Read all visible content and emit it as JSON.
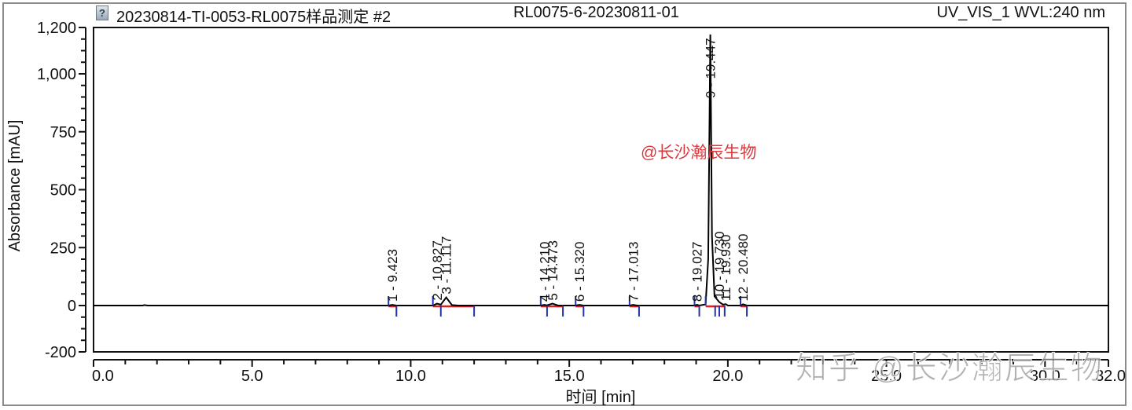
{
  "header": {
    "icon": "question-file-icon",
    "icon_glyph": "?",
    "sample_name": "20230814-TI-0053-RL0075样品测定 #2",
    "injection": "RL0075-6-20230811-01",
    "channel": "UV_VIS_1 WVL:240 nm"
  },
  "axes": {
    "ylabel": "Absorbance [mAU]",
    "xlabel": "时间 [min]",
    "y_ticks": [
      "1,200",
      "1,000",
      "750",
      "500",
      "250",
      "0",
      "-200"
    ],
    "x_ticks": [
      "0.0",
      "5.0",
      "10.0",
      "15.0",
      "20.0",
      "25.0",
      "30.0",
      "32.0"
    ]
  },
  "watermarks": {
    "red": "@长沙瀚辰生物",
    "gray": "知乎 @长沙瀚辰生物"
  },
  "peak_labels": [
    {
      "id": "1",
      "text": "1 - 9.423"
    },
    {
      "id": "2",
      "text": "2 - 10.827"
    },
    {
      "id": "3",
      "text": "3 - 11.117"
    },
    {
      "id": "4",
      "text": "4 - 14.210"
    },
    {
      "id": "5",
      "text": "5 - 14.473"
    },
    {
      "id": "6",
      "text": "6 - 15.320"
    },
    {
      "id": "7",
      "text": "7 - 17.013"
    },
    {
      "id": "8",
      "text": "8 - 19.027"
    },
    {
      "id": "9",
      "text": "9 - 19.447"
    },
    {
      "id": "10",
      "text": "10 - 19.730"
    },
    {
      "id": "11",
      "text": "11 - 19.930"
    },
    {
      "id": "12",
      "text": "12 - 20.480"
    }
  ],
  "chart_data": {
    "type": "line",
    "title": "20230814-TI-0053-RL0075样品测定 #2 — RL0075-6-20230811-01 — UV_VIS_1 WVL:240 nm",
    "xlabel": "时间 [min]",
    "ylabel": "Absorbance [mAU]",
    "xlim": [
      0.0,
      32.0
    ],
    "ylim": [
      -200,
      1200
    ],
    "x_ticks": [
      0,
      5,
      10,
      15,
      20,
      25,
      30,
      32
    ],
    "y_ticks": [
      -200,
      0,
      250,
      500,
      750,
      1000,
      1200
    ],
    "grid": false,
    "legend": null,
    "series": [
      {
        "name": "UV_VIS_1",
        "color": "#000000",
        "peaks": [
          {
            "peak": 1,
            "rt_min": 9.423,
            "height_mAU": 3
          },
          {
            "peak": 2,
            "rt_min": 10.827,
            "height_mAU": 8
          },
          {
            "peak": 3,
            "rt_min": 11.117,
            "height_mAU": 35
          },
          {
            "peak": 4,
            "rt_min": 14.21,
            "height_mAU": 3
          },
          {
            "peak": 5,
            "rt_min": 14.473,
            "height_mAU": 8
          },
          {
            "peak": 6,
            "rt_min": 15.32,
            "height_mAU": 3
          },
          {
            "peak": 7,
            "rt_min": 17.013,
            "height_mAU": 3
          },
          {
            "peak": 8,
            "rt_min": 19.027,
            "height_mAU": 3
          },
          {
            "peak": 9,
            "rt_min": 19.447,
            "height_mAU": 1170
          },
          {
            "peak": 10,
            "rt_min": 19.73,
            "height_mAU": 15
          },
          {
            "peak": 11,
            "rt_min": 19.93,
            "height_mAU": 6
          },
          {
            "peak": 12,
            "rt_min": 20.48,
            "height_mAU": 5
          }
        ],
        "baseline_mAU": 0,
        "points": [
          [
            0.0,
            0
          ],
          [
            1.55,
            0
          ],
          [
            1.6,
            2
          ],
          [
            1.7,
            0
          ],
          [
            9.3,
            0
          ],
          [
            9.42,
            3
          ],
          [
            9.55,
            0
          ],
          [
            10.7,
            0
          ],
          [
            10.83,
            8
          ],
          [
            10.95,
            4
          ],
          [
            11.12,
            35
          ],
          [
            11.3,
            2
          ],
          [
            11.5,
            0
          ],
          [
            14.1,
            0
          ],
          [
            14.21,
            3
          ],
          [
            14.3,
            1
          ],
          [
            14.47,
            8
          ],
          [
            14.65,
            0
          ],
          [
            15.2,
            0
          ],
          [
            15.32,
            3
          ],
          [
            15.45,
            0
          ],
          [
            16.9,
            0
          ],
          [
            17.01,
            3
          ],
          [
            17.15,
            0
          ],
          [
            18.95,
            0
          ],
          [
            19.03,
            3
          ],
          [
            19.1,
            0
          ],
          [
            19.3,
            5
          ],
          [
            19.38,
            200
          ],
          [
            19.447,
            1170
          ],
          [
            19.5,
            300
          ],
          [
            19.58,
            40
          ],
          [
            19.73,
            15
          ],
          [
            19.85,
            4
          ],
          [
            19.93,
            6
          ],
          [
            20.0,
            0
          ],
          [
            20.4,
            0
          ],
          [
            20.48,
            5
          ],
          [
            20.6,
            0
          ],
          [
            32.0,
            0
          ]
        ]
      }
    ],
    "annotations": [
      "@长沙瀚辰生物",
      "知乎 @长沙瀚辰生物"
    ]
  }
}
